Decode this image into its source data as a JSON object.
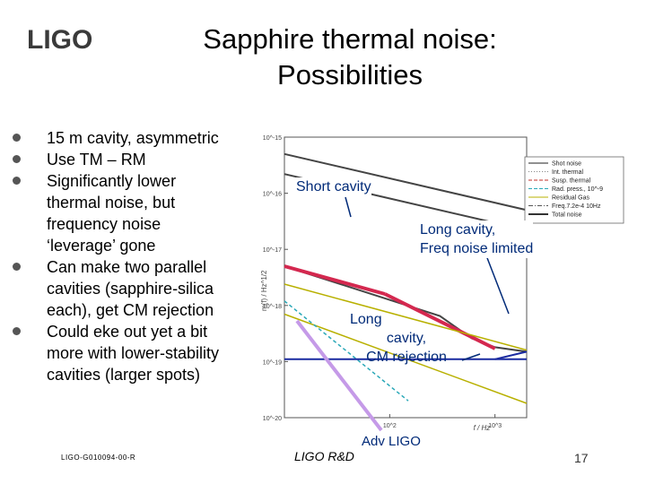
{
  "slide": {
    "title_line1": "Sapphire thermal noise:",
    "title_line2": "Possibilities",
    "bullets": [
      {
        "lines": [
          "15 m cavity, asymmetric"
        ]
      },
      {
        "lines": [
          "Use TM – RM"
        ]
      },
      {
        "lines": [
          "Significantly lower",
          "thermal noise, but",
          "frequency noise",
          "‘leverage’ gone"
        ]
      },
      {
        "lines": [
          "Can make two parallel",
          "cavities (sapphire-silica",
          "each), get CM rejection"
        ]
      },
      {
        "lines": [
          "Could eke out yet a bit",
          "more with lower-stability",
          "cavities (larger spots)"
        ]
      }
    ],
    "footer": {
      "doc_id": "LIGO-G010094-00-R",
      "center": "LIGO R&D",
      "page": "17"
    },
    "logo_text": "LIGO"
  },
  "annotations": {
    "short_cavity": "Short cavity",
    "long_cavity_freq": [
      "Long cavity,",
      "Freq noise limited"
    ],
    "long_cavity_cm": [
      "Long",
      "cavity,",
      "CM rejection"
    ],
    "adv_ligo": "Adv LIGO"
  },
  "chart_data": {
    "type": "line",
    "title": "",
    "xlabel": "f / Hz",
    "ylabel": "m(f) / Hz^1/2",
    "x_scale": "log",
    "y_scale": "log",
    "xlim": [
      10,
      2000
    ],
    "ylim": [
      1e-20,
      1e-15
    ],
    "x_tick_labels": [
      "10^2",
      "10^3"
    ],
    "y_tick_labels": [
      "10^-15",
      "10^-16",
      "10^-17",
      "10^-18",
      "10^-19",
      "10^-20"
    ],
    "legend_position": "top-right",
    "legend": [
      {
        "name": "Shot noise",
        "color": "#222222",
        "dash": "solid"
      },
      {
        "name": "Int. thermal",
        "color": "#888888",
        "dash": "dot"
      },
      {
        "name": "Susp. thermal",
        "color": "#c0302a",
        "dash": "dash"
      },
      {
        "name": "Rad. press., 10^-9",
        "color": "#2aa8b8",
        "dash": "dash"
      },
      {
        "name": "Residual Gas",
        "color": "#b8b000",
        "dash": "solid"
      },
      {
        "name": "Freq.7.2e-4 10Hz",
        "color": "#555555",
        "dash": "dashdot"
      },
      {
        "name": "Total noise",
        "color": "#333333",
        "dash": "solid"
      }
    ],
    "series": [
      {
        "x": [
          10,
          2000
        ],
        "y": [
          2.2e-16,
          2.2e-17
        ],
        "color": "#444444",
        "width": 2
      },
      {
        "x": [
          10,
          2000
        ],
        "y": [
          5e-16,
          5e-17
        ],
        "color": "#444444",
        "width": 2
      },
      {
        "x": [
          10,
          300,
          600,
          1000,
          2000
        ],
        "y": [
          5e-18,
          6.5e-19,
          2.6e-19,
          1.8e-19,
          1.5e-19
        ],
        "color": "#444444",
        "width": 2
      },
      {
        "x": [
          10,
          90
        ],
        "y": [
          5e-18,
          1.6e-18
        ],
        "color": "#d4284f",
        "width": 4
      },
      {
        "x": [
          90,
          1000
        ],
        "y": [
          1.6e-18,
          1.7e-19
        ],
        "color": "#d4284f",
        "width": 4
      },
      {
        "x": [
          10,
          2000
        ],
        "y": [
          2.4e-18,
          1.6e-19
        ],
        "color": "#b8b000",
        "width": 1.5
      },
      {
        "x": [
          10,
          2000
        ],
        "y": [
          7e-19,
          1.8e-20
        ],
        "color": "#b8b000",
        "width": 1.5
      },
      {
        "x": [
          10,
          150
        ],
        "y": [
          1.2e-18,
          2e-20
        ],
        "color": "#2aa8b8",
        "width": 1.5,
        "dash": "4 3"
      },
      {
        "x": [
          10,
          2000
        ],
        "y": [
          1.1e-19,
          1.1e-19
        ],
        "color": "#1a2aa0",
        "width": 2
      },
      {
        "x": [
          1000,
          2000
        ],
        "y": [
          1.1e-19,
          1.5e-19
        ],
        "color": "#1a2aa0",
        "width": 2
      }
    ]
  }
}
